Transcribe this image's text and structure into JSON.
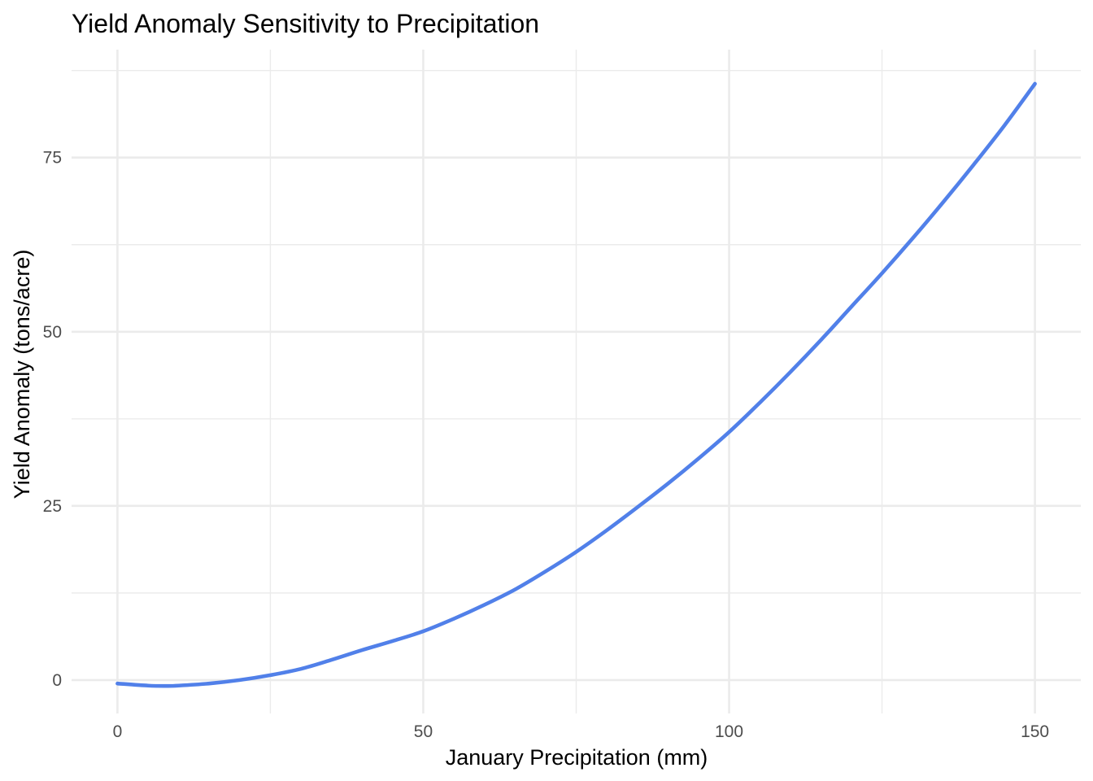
{
  "chart_data": {
    "type": "line",
    "title": "Yield Anomaly Sensitivity to Precipitation",
    "xlabel": "January Precipitation (mm)",
    "ylabel": "Yield Anomaly (tons/acre)",
    "xlim": [
      -7.5,
      157.5
    ],
    "ylim": [
      -4.8,
      90.5
    ],
    "x_ticks": [
      0,
      50,
      100,
      150
    ],
    "x_tick_labels": [
      "0",
      "50",
      "100",
      "150"
    ],
    "x_minor_ticks": [
      25,
      75,
      125
    ],
    "y_ticks": [
      0,
      25,
      50,
      75
    ],
    "y_tick_labels": [
      "0",
      "25",
      "50",
      "75"
    ],
    "y_minor_ticks": [
      12.5,
      37.5,
      62.5,
      87.5
    ],
    "grid": true,
    "legend": "none",
    "series": [
      {
        "color": "#5180e9",
        "x": [
          0,
          5,
          8,
          10,
          15,
          20,
          25,
          30,
          35,
          40,
          45,
          50,
          55,
          60,
          65,
          70,
          75,
          80,
          85,
          90,
          95,
          100,
          105,
          110,
          115,
          120,
          125,
          130,
          135,
          140,
          145,
          150
        ],
        "y": [
          -0.5,
          -0.8,
          -0.85,
          -0.8,
          -0.5,
          0.0,
          0.7,
          1.6,
          2.9,
          4.3,
          5.6,
          7.0,
          8.8,
          10.8,
          13.0,
          15.6,
          18.4,
          21.5,
          24.8,
          28.2,
          31.8,
          35.6,
          39.8,
          44.2,
          48.8,
          53.6,
          58.4,
          63.4,
          68.6,
          74.0,
          79.6,
          85.6
        ]
      }
    ]
  }
}
